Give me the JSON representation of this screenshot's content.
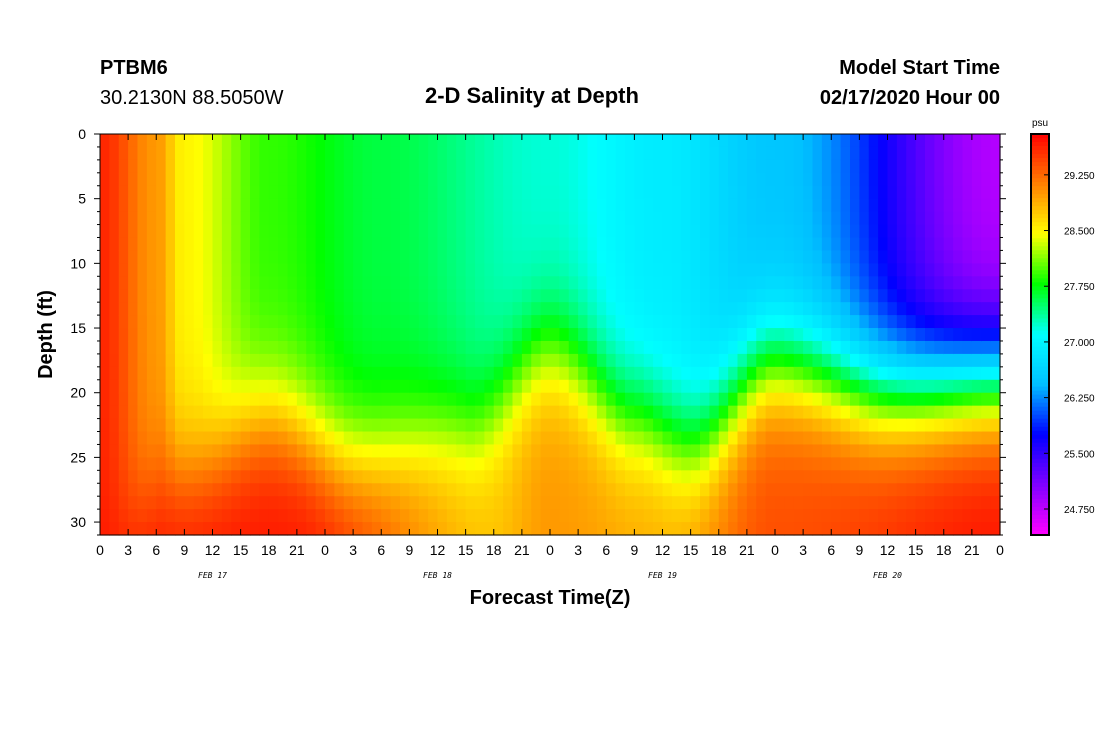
{
  "header": {
    "station_id": "PTBM6",
    "station_coords": "30.2130N 88.5050W",
    "title": "2-D Salinity at Depth",
    "start_label": "Model Start Time",
    "start_value": "02/17/2020 Hour 00"
  },
  "chart_data": {
    "type": "heatmap",
    "title": "2-D Salinity at Depth",
    "xlabel": "Forecast Time(Z)",
    "ylabel": "Depth (ft)",
    "x_hours": [
      0,
      96
    ],
    "x_tick_labels": [
      "0",
      "3",
      "6",
      "9",
      "12",
      "15",
      "18",
      "21",
      "0",
      "3",
      "6",
      "9",
      "12",
      "15",
      "18",
      "21",
      "0",
      "3",
      "6",
      "9",
      "12",
      "15",
      "18",
      "21",
      "0",
      "3",
      "6",
      "9",
      "12",
      "15",
      "18",
      "21",
      "0"
    ],
    "date_labels": [
      {
        "label": "FEB 17",
        "hour": 12
      },
      {
        "label": "FEB 18",
        "hour": 36
      },
      {
        "label": "FEB 19",
        "hour": 60
      },
      {
        "label": "FEB 20",
        "hour": 84
      }
    ],
    "y_range": [
      0,
      31
    ],
    "y_ticks": [
      0,
      5,
      10,
      15,
      20,
      25,
      30
    ],
    "colorbar": {
      "unit": "psu",
      "range": [
        24.4,
        29.8
      ],
      "tick_values": [
        29.25,
        28.5,
        27.75,
        27.0,
        26.25,
        25.5,
        24.75
      ],
      "tick_labels": [
        "29.250",
        "28.500",
        "27.750",
        "27.000",
        "26.250",
        "25.500",
        "24.750"
      ],
      "colors": [
        "#ff00ff",
        "#8000ff",
        "#0000ff",
        "#00bfff",
        "#00ffff",
        "#00ff00",
        "#ffff00",
        "#ff8000",
        "#ff0000"
      ]
    },
    "surface_salinity_by_hour": [
      {
        "hour": 0,
        "value": 29.6
      },
      {
        "hour": 6,
        "value": 29.0
      },
      {
        "hour": 9,
        "value": 28.5
      },
      {
        "hour": 18,
        "value": 27.9
      },
      {
        "hour": 30,
        "value": 27.6
      },
      {
        "hour": 48,
        "value": 27.2
      },
      {
        "hour": 60,
        "value": 26.9
      },
      {
        "hour": 72,
        "value": 26.5
      },
      {
        "hour": 96,
        "value": 24.8
      }
    ],
    "halocline_depth_by_hour": [
      {
        "hour": 0,
        "value": 31
      },
      {
        "hour": 9,
        "value": 26
      },
      {
        "hour": 18,
        "value": 22
      },
      {
        "hour": 27,
        "value": 25
      },
      {
        "hour": 39,
        "value": 23
      },
      {
        "hour": 48,
        "value": 17
      },
      {
        "hour": 57,
        "value": 22
      },
      {
        "hour": 63,
        "value": 24
      },
      {
        "hour": 72,
        "value": 18
      },
      {
        "hour": 84,
        "value": 20
      },
      {
        "hour": 96,
        "value": 19
      }
    ],
    "bottom_salinity_by_hour": [
      {
        "hour": 0,
        "value": 29.7
      },
      {
        "hour": 21,
        "value": 29.7
      },
      {
        "hour": 42,
        "value": 28.8
      },
      {
        "hour": 48,
        "value": 29.0
      },
      {
        "hour": 60,
        "value": 28.9
      },
      {
        "hour": 72,
        "value": 29.4
      },
      {
        "hour": 96,
        "value": 29.7
      }
    ]
  }
}
